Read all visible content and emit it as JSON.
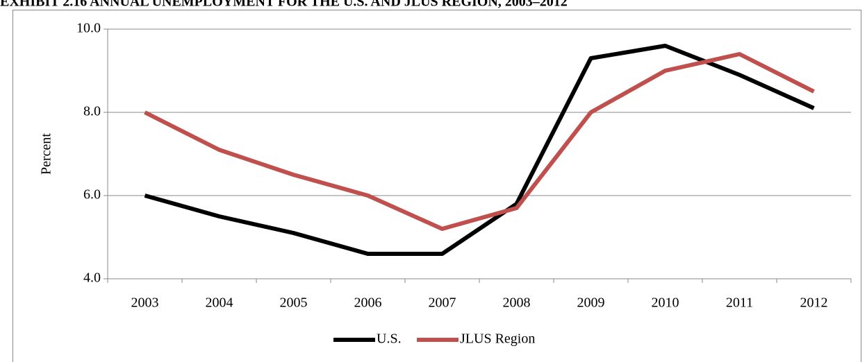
{
  "chart_data": {
    "type": "line",
    "title": "EXHIBIT 2.16 ANNUAL UNEMPLOYMENT FOR THE U.S. AND JLUS REGION, 2003–2012",
    "y_label": "Percent",
    "categories": [
      "2003",
      "2004",
      "2005",
      "2006",
      "2007",
      "2008",
      "2009",
      "2010",
      "2011",
      "2012"
    ],
    "series": [
      {
        "name": "U.S.",
        "color": "#000000",
        "values": [
          6.0,
          5.5,
          5.1,
          4.6,
          4.6,
          5.8,
          9.3,
          9.6,
          8.9,
          8.1
        ]
      },
      {
        "name": "JLUS Region",
        "color": "#c0504d",
        "values": [
          8.0,
          7.1,
          6.5,
          6.0,
          5.2,
          5.7,
          8.0,
          9.0,
          9.4,
          8.5
        ]
      }
    ],
    "ylim": [
      4,
      10
    ],
    "yticks": [
      {
        "value": 4,
        "label": "4.0"
      },
      {
        "value": 6,
        "label": "6.0"
      },
      {
        "value": 8,
        "label": "8.0"
      },
      {
        "value": 10,
        "label": "10.0"
      }
    ],
    "grid": true,
    "legend": "bottom"
  }
}
